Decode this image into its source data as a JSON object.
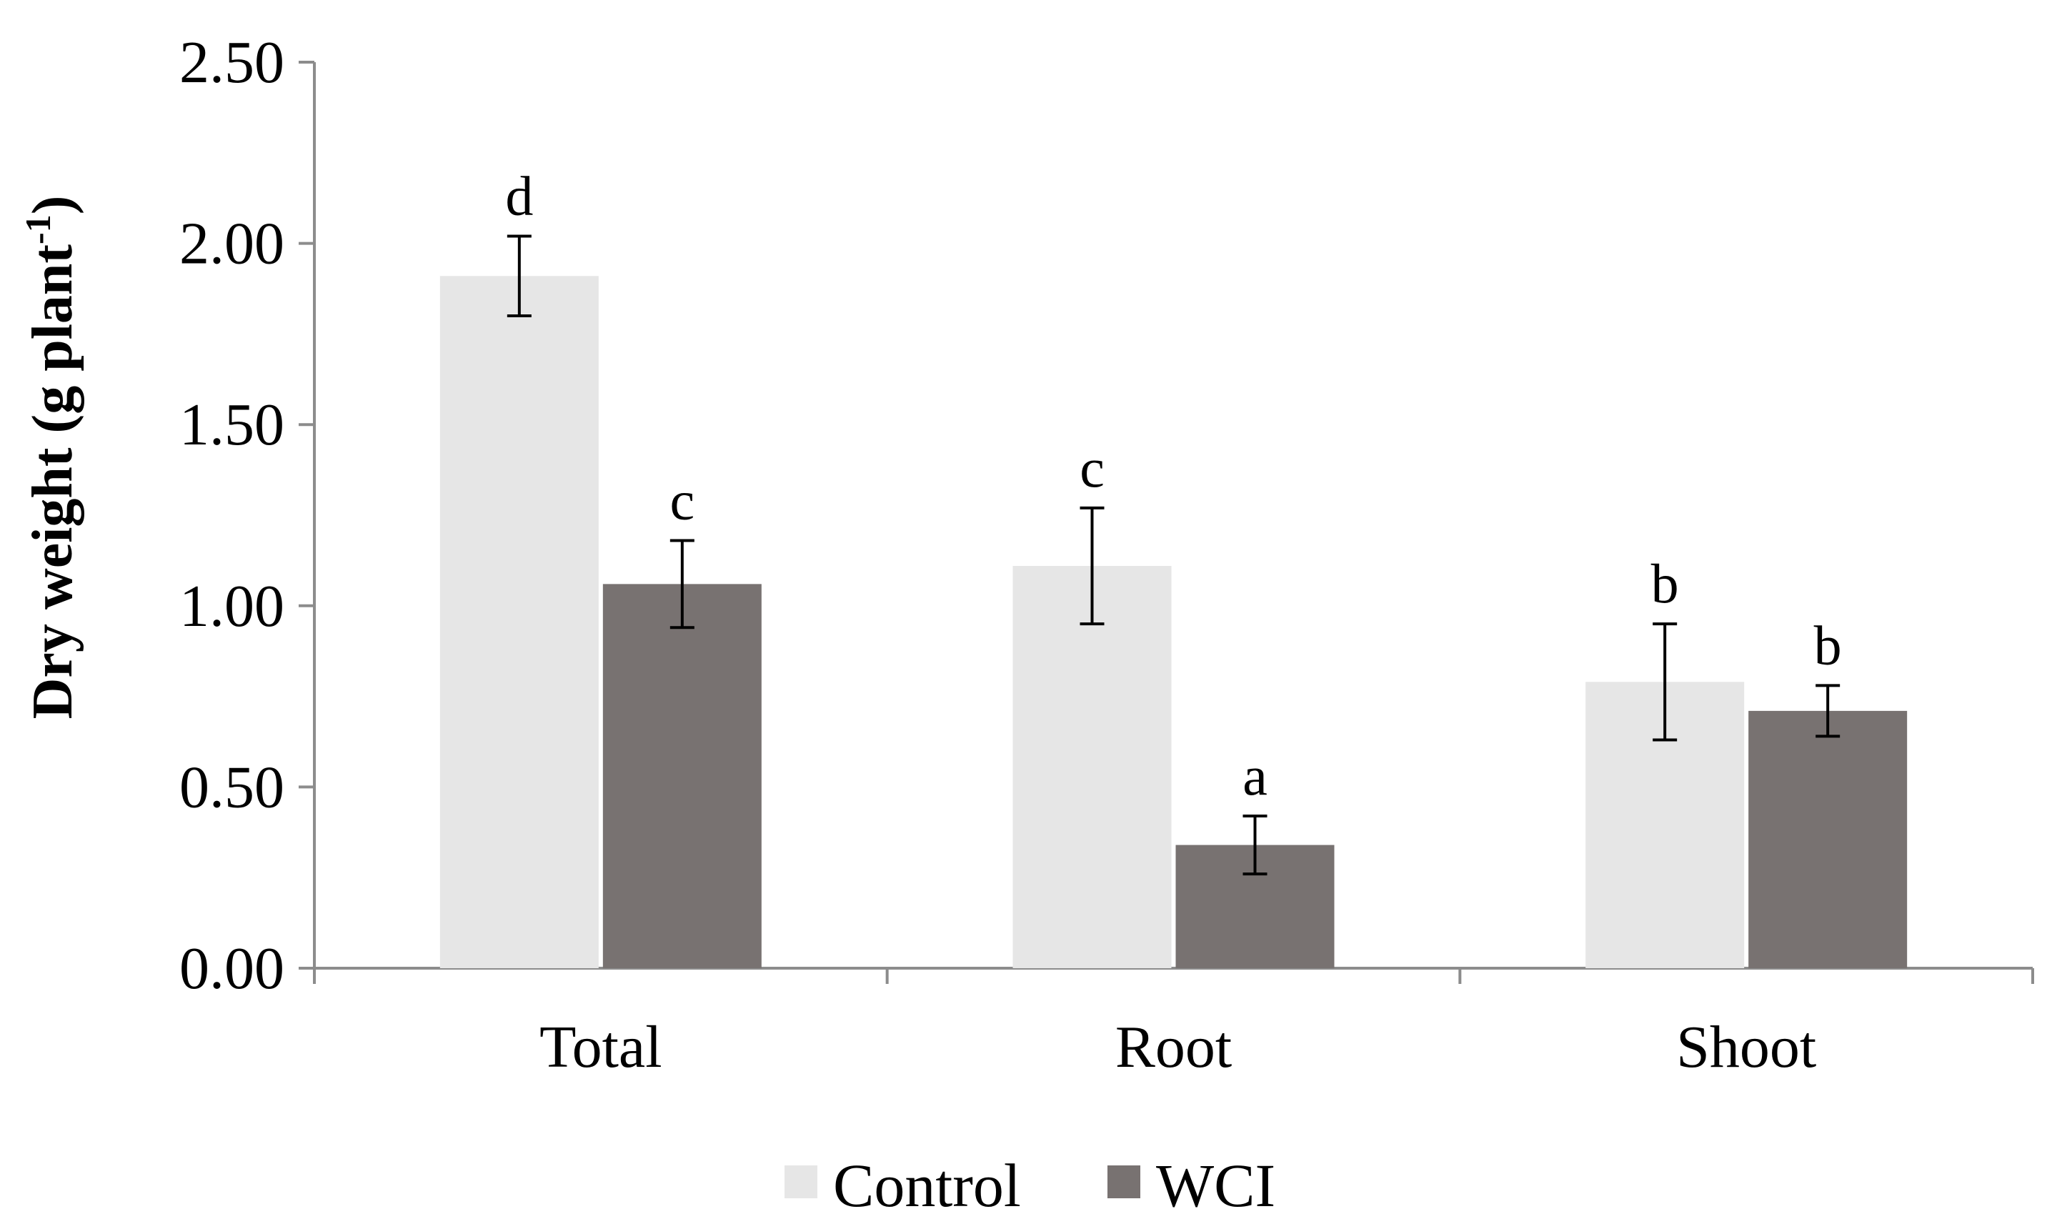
{
  "chart_data": {
    "type": "bar",
    "title": "",
    "xlabel": "",
    "ylabel": "Dry weight (g plant",
    "ylabel_sup": "-1",
    "ylabel_close": ")",
    "ylim": [
      0,
      2.5
    ],
    "yticks": [
      0.0,
      0.5,
      1.0,
      1.5,
      2.0,
      2.5
    ],
    "ytick_labels": [
      "0.00",
      "0.50",
      "1.00",
      "1.50",
      "2.00",
      "2.50"
    ],
    "grid": false,
    "legend_position": "bottom-center",
    "categories": [
      "Total",
      "Root",
      "Shoot"
    ],
    "series": [
      {
        "name": "Control",
        "color": "#e6e6e6",
        "values": [
          1.91,
          1.11,
          0.79
        ],
        "errors": [
          0.11,
          0.16,
          0.16
        ],
        "letters": [
          "d",
          "c",
          "b"
        ]
      },
      {
        "name": "WCI",
        "color": "#787271",
        "values": [
          1.06,
          0.34,
          0.71
        ],
        "errors": [
          0.12,
          0.08,
          0.07
        ],
        "letters": [
          "c",
          "a",
          "b"
        ]
      }
    ]
  }
}
